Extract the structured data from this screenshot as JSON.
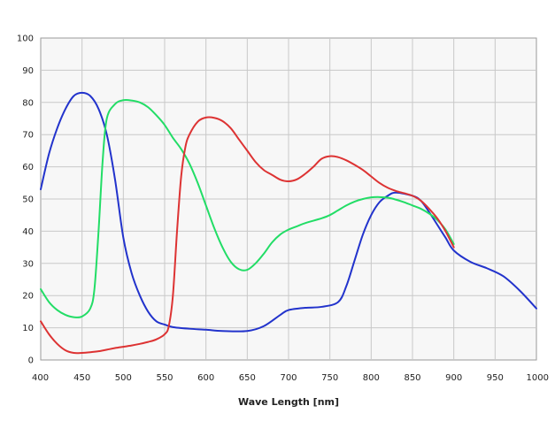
{
  "chart_data": {
    "type": "line",
    "title": "",
    "xlabel": "Wave Length [nm]",
    "ylabel": "",
    "xlim": [
      400,
      1000
    ],
    "ylim": [
      0,
      100
    ],
    "x_ticks": [
      400,
      450,
      500,
      550,
      600,
      650,
      700,
      750,
      800,
      850,
      900,
      950,
      1000
    ],
    "y_ticks": [
      0,
      10,
      20,
      30,
      40,
      50,
      60,
      70,
      80,
      90,
      100
    ],
    "grid": true,
    "legend": "none",
    "series": [
      {
        "color": "#2233cc",
        "x": [
          400,
          410,
          420,
          430,
          440,
          450,
          460,
          470,
          480,
          490,
          500,
          510,
          520,
          530,
          540,
          550,
          560,
          580,
          600,
          620,
          650,
          670,
          690,
          700,
          720,
          740,
          760,
          770,
          780,
          790,
          800,
          810,
          820,
          830,
          850,
          860,
          870,
          880,
          890,
          900,
          920,
          940,
          960,
          980,
          1000
        ],
        "y": [
          53,
          64,
          72,
          78,
          82,
          83,
          82,
          78,
          70,
          56,
          38,
          27,
          20,
          15,
          12,
          11,
          10.2,
          9.7,
          9.4,
          9,
          9,
          10.5,
          14,
          15.5,
          16.2,
          16.5,
          18,
          23,
          31,
          39,
          45,
          49,
          51,
          52,
          51,
          49.5,
          46,
          42,
          38,
          34,
          30.5,
          28.5,
          26,
          21.5,
          16
        ]
      },
      {
        "color": "#22dd66",
        "x": [
          400,
          410,
          420,
          430,
          440,
          450,
          460,
          465,
          470,
          475,
          480,
          490,
          500,
          510,
          520,
          530,
          540,
          550,
          560,
          570,
          580,
          590,
          600,
          610,
          620,
          630,
          640,
          650,
          660,
          670,
          680,
          690,
          700,
          710,
          720,
          740,
          750,
          760,
          770,
          780,
          790,
          800,
          810,
          820,
          830,
          840,
          850,
          860,
          870,
          880,
          890,
          900
        ],
        "y": [
          22,
          18,
          15.5,
          14,
          13.3,
          13.5,
          16,
          22,
          40,
          62,
          75,
          79.5,
          80.7,
          80.6,
          80,
          78.5,
          76,
          73,
          69,
          65.5,
          61,
          55,
          48,
          41,
          35,
          30.5,
          28.2,
          28,
          30,
          33,
          36.5,
          39,
          40.5,
          41.5,
          42.5,
          44,
          45,
          46.5,
          48,
          49.2,
          50,
          50.5,
          50.6,
          50.4,
          49.8,
          49,
          48,
          47,
          45.5,
          43.5,
          40.5,
          36
        ]
      },
      {
        "color": "#dd3333",
        "x": [
          400,
          410,
          420,
          430,
          440,
          450,
          460,
          470,
          480,
          490,
          500,
          510,
          520,
          530,
          540,
          550,
          555,
          560,
          565,
          570,
          575,
          580,
          590,
          600,
          610,
          620,
          630,
          640,
          650,
          660,
          670,
          680,
          690,
          700,
          710,
          720,
          730,
          740,
          750,
          760,
          770,
          780,
          790,
          800,
          810,
          820,
          830,
          840,
          850,
          860,
          870,
          880,
          890,
          900
        ],
        "y": [
          12,
          8,
          5,
          3,
          2.2,
          2.2,
          2.4,
          2.7,
          3.2,
          3.7,
          4.1,
          4.5,
          5,
          5.6,
          6.4,
          8,
          10.5,
          20,
          40,
          57,
          66,
          70,
          74,
          75.3,
          75.2,
          74.2,
          72,
          68.5,
          65,
          61.5,
          59,
          57.5,
          56,
          55.5,
          56.1,
          57.8,
          60,
          62.5,
          63.3,
          63,
          62,
          60.6,
          59,
          57,
          55,
          53.5,
          52.5,
          51.8,
          51,
          49.5,
          47,
          44,
          40,
          35
        ]
      }
    ]
  }
}
